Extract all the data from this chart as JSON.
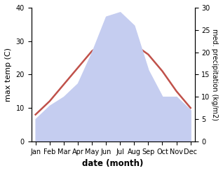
{
  "months": [
    "Jan",
    "Feb",
    "Mar",
    "Apr",
    "May",
    "Jun",
    "Jul",
    "Aug",
    "Sep",
    "Oct",
    "Nov",
    "Dec"
  ],
  "temp": [
    8,
    12,
    17,
    22,
    27,
    30,
    29,
    29,
    26,
    21,
    15,
    10
  ],
  "precip": [
    5,
    8,
    10,
    13,
    20,
    28,
    29,
    26,
    16,
    10,
    10,
    7
  ],
  "temp_color": "#c0514a",
  "precip_fill_color": "#c5cdf0",
  "xlabel": "date (month)",
  "ylabel_left": "max temp (C)",
  "ylabel_right": "med. precipitation (kg/m2)",
  "ylim_left": [
    0,
    40
  ],
  "ylim_right": [
    0,
    30
  ],
  "yticks_left": [
    0,
    10,
    20,
    30,
    40
  ],
  "yticks_right": [
    0,
    5,
    10,
    15,
    20,
    25,
    30
  ],
  "background_color": "#ffffff",
  "temp_linewidth": 1.8,
  "figsize": [
    3.18,
    2.47
  ],
  "dpi": 100
}
